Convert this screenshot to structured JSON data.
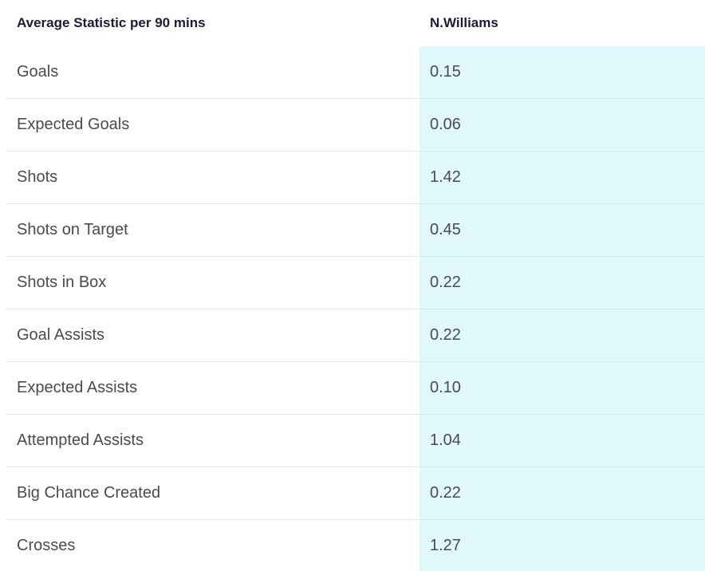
{
  "table": {
    "headers": {
      "stat": "Average Statistic per 90 mins",
      "player": "N.Williams"
    },
    "rows": [
      {
        "stat": "Goals",
        "value": "0.15"
      },
      {
        "stat": "Expected Goals",
        "value": "0.06"
      },
      {
        "stat": "Shots",
        "value": "1.42"
      },
      {
        "stat": "Shots on Target",
        "value": "0.45"
      },
      {
        "stat": "Shots in Box",
        "value": "0.22"
      },
      {
        "stat": "Goal Assists",
        "value": "0.22"
      },
      {
        "stat": "Expected Assists",
        "value": "0.10"
      },
      {
        "stat": "Attempted Assists",
        "value": "1.04"
      },
      {
        "stat": "Big Chance Created",
        "value": "0.22"
      },
      {
        "stat": "Crosses",
        "value": "1.27"
      }
    ]
  },
  "colors": {
    "header_text": "#1b1b3a",
    "cell_text": "#4a4a52",
    "highlight_column": "#e0f7fb",
    "row_divider": "#e4e4e4"
  }
}
